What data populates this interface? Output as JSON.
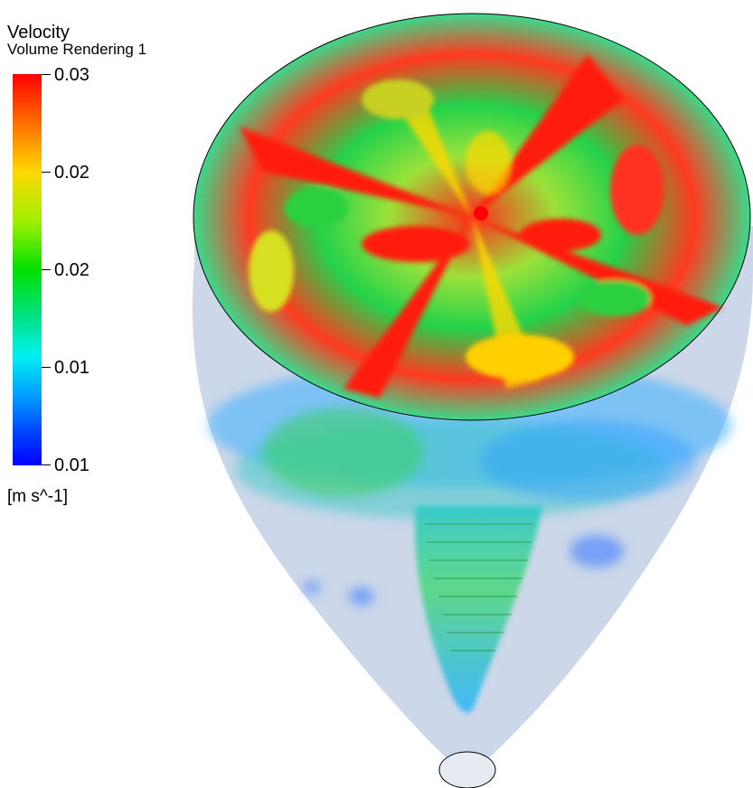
{
  "legend": {
    "title": "Velocity",
    "subtitle": "Volume Rendering 1",
    "ticks": [
      "0.03",
      "0.02",
      "0.02",
      "0.01",
      "0.01"
    ],
    "units": "[m s^-1]",
    "colors": [
      "#ff0000",
      "#ff6a00",
      "#ffd800",
      "#9cf000",
      "#00e000",
      "#00e070",
      "#00f0f0",
      "#00a0ff",
      "#0040ff",
      "#0000ff"
    ]
  },
  "scene": {
    "body_color": "#c9d5e8",
    "rim_color": "#000000"
  }
}
